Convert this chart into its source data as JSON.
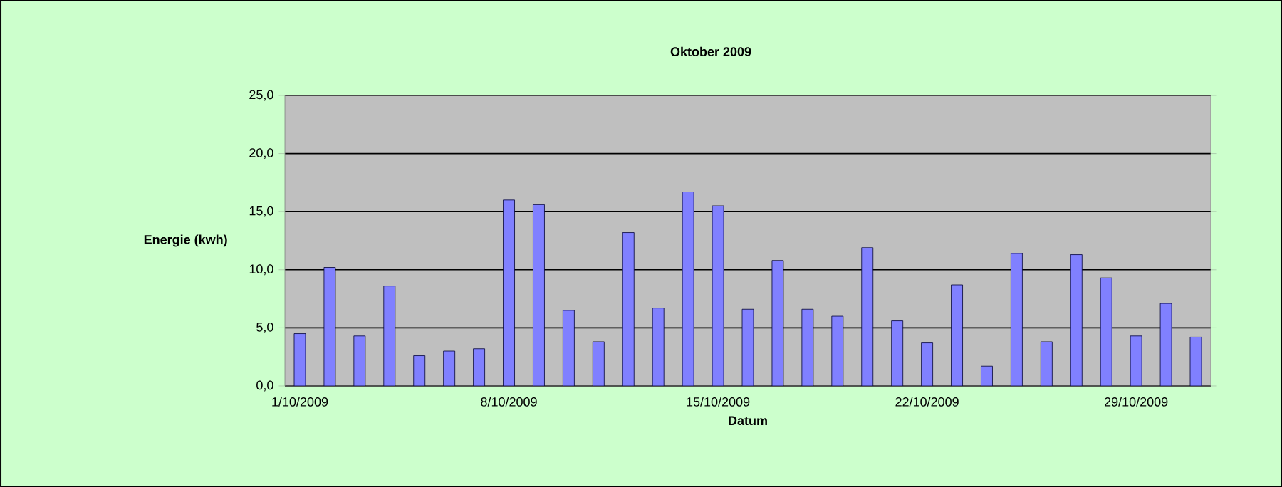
{
  "chart_data": {
    "type": "bar",
    "title": "Oktober 2009",
    "xlabel": "Datum",
    "ylabel": "Energie (kwh)",
    "categories": [
      "1/10/2009",
      null,
      null,
      null,
      null,
      null,
      null,
      "8/10/2009",
      null,
      null,
      null,
      null,
      null,
      null,
      "15/10/2009",
      null,
      null,
      null,
      null,
      null,
      null,
      "22/10/2009",
      null,
      null,
      null,
      null,
      null,
      null,
      "29/10/2009",
      null,
      null
    ],
    "values": [
      4.5,
      10.2,
      4.3,
      8.6,
      2.6,
      3.0,
      3.2,
      16.0,
      15.6,
      6.5,
      3.8,
      13.2,
      6.7,
      16.7,
      15.5,
      6.6,
      10.8,
      6.6,
      6.0,
      11.9,
      5.6,
      3.7,
      8.7,
      1.7,
      11.4,
      3.8,
      11.3,
      9.3,
      4.3,
      7.1,
      4.2
    ],
    "color": "#8080ff",
    "ylim": [
      0,
      25
    ],
    "yticks": [
      {
        "value": 0,
        "label": "0,0"
      },
      {
        "value": 5,
        "label": "5,0"
      },
      {
        "value": 10,
        "label": "10,0"
      },
      {
        "value": 15,
        "label": "15,0"
      },
      {
        "value": 20,
        "label": "20,0"
      },
      {
        "value": 25,
        "label": "25,0"
      }
    ],
    "grid": "y"
  }
}
